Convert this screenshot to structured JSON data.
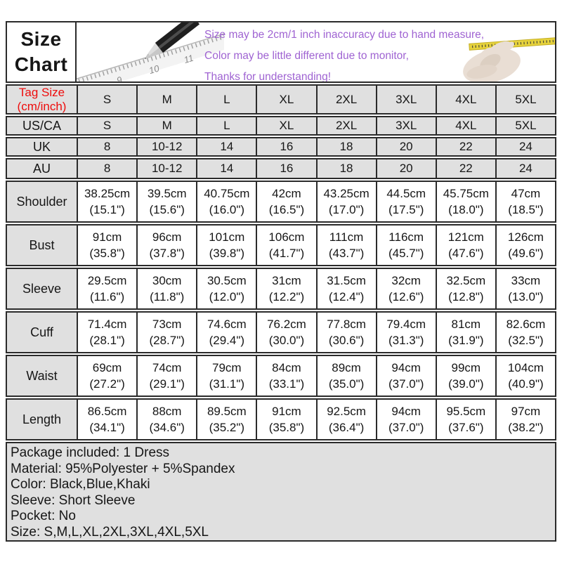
{
  "title": {
    "line1": "Size",
    "line2": "Chart"
  },
  "header_note": {
    "lines": [
      "Size may be 2cm/1 inch inaccuracy due to hand measure,",
      "Color may be little different due to monitor,",
      "Thanks for understanding!"
    ]
  },
  "icons": {
    "pencil_ruler": "pencil-and-ruler-illustration",
    "hand_tape": "hand-holding-measuring-tape-illustration",
    "ruler_numbers": [
      "9",
      "10",
      "11"
    ]
  },
  "colors": {
    "cell_gray": "#e0e0e0",
    "border": "#2b2b2b",
    "tag_size_red": "#ee0c0c",
    "note_purple": "#9f63d2",
    "tape_yellow": "#e6d23c",
    "hand_skin": "#e9ded4"
  },
  "table": {
    "columns": [
      "S",
      "M",
      "L",
      "XL",
      "2XL",
      "3XL",
      "4XL",
      "5XL"
    ],
    "rows": [
      {
        "name": "tag-size",
        "type": "size",
        "variant": "tag",
        "label": [
          "Tag Size",
          "(cm/inch)"
        ],
        "cells": [
          [
            "S"
          ],
          [
            "M"
          ],
          [
            "L"
          ],
          [
            "XL"
          ],
          [
            "2XL"
          ],
          [
            "3XL"
          ],
          [
            "4XL"
          ],
          [
            "5XL"
          ]
        ]
      },
      {
        "name": "us-ca",
        "type": "size",
        "label": [
          "US/CA"
        ],
        "cells": [
          [
            "S"
          ],
          [
            "M"
          ],
          [
            "L"
          ],
          [
            "XL"
          ],
          [
            "2XL"
          ],
          [
            "3XL"
          ],
          [
            "4XL"
          ],
          [
            "5XL"
          ]
        ]
      },
      {
        "name": "uk",
        "type": "size",
        "label": [
          "UK"
        ],
        "cells": [
          [
            "8"
          ],
          [
            "10-12"
          ],
          [
            "14"
          ],
          [
            "16"
          ],
          [
            "18"
          ],
          [
            "20"
          ],
          [
            "22"
          ],
          [
            "24"
          ]
        ]
      },
      {
        "name": "au",
        "type": "size",
        "variant": "au",
        "label": [
          "AU"
        ],
        "cells": [
          [
            "8"
          ],
          [
            "10-12"
          ],
          [
            "14"
          ],
          [
            "16"
          ],
          [
            "18"
          ],
          [
            "20"
          ],
          [
            "22"
          ],
          [
            "24"
          ]
        ]
      },
      {
        "name": "shoulder",
        "type": "measure",
        "label": [
          "Shoulder"
        ],
        "cells": [
          [
            "38.25cm",
            "(15.1\")"
          ],
          [
            "39.5cm",
            "(15.6\")"
          ],
          [
            "40.75cm",
            "(16.0\")"
          ],
          [
            "42cm",
            "(16.5\")"
          ],
          [
            "43.25cm",
            "(17.0\")"
          ],
          [
            "44.5cm",
            "(17.5\")"
          ],
          [
            "45.75cm",
            "(18.0\")"
          ],
          [
            "47cm",
            "(18.5\")"
          ]
        ]
      },
      {
        "name": "bust",
        "type": "measure",
        "label": [
          "Bust"
        ],
        "cells": [
          [
            "91cm",
            "(35.8\")"
          ],
          [
            "96cm",
            "(37.8\")"
          ],
          [
            "101cm",
            "(39.8\")"
          ],
          [
            "106cm",
            "(41.7\")"
          ],
          [
            "111cm",
            "(43.7\")"
          ],
          [
            "116cm",
            "(45.7\")"
          ],
          [
            "121cm",
            "(47.6\")"
          ],
          [
            "126cm",
            "(49.6\")"
          ]
        ]
      },
      {
        "name": "sleeve",
        "type": "measure",
        "label": [
          "Sleeve"
        ],
        "cells": [
          [
            "29.5cm",
            "(11.6\")"
          ],
          [
            "30cm",
            "(11.8\")"
          ],
          [
            "30.5cm",
            "(12.0\")"
          ],
          [
            "31cm",
            "(12.2\")"
          ],
          [
            "31.5cm",
            "(12.4\")"
          ],
          [
            "32cm",
            "(12.6\")"
          ],
          [
            "32.5cm",
            "(12.8\")"
          ],
          [
            "33cm",
            "(13.0\")"
          ]
        ]
      },
      {
        "name": "cuff",
        "type": "measure",
        "label": [
          "Cuff"
        ],
        "cells": [
          [
            "71.4cm",
            "(28.1\")"
          ],
          [
            "73cm",
            "(28.7\")"
          ],
          [
            "74.6cm",
            "(29.4\")"
          ],
          [
            "76.2cm",
            "(30.0\")"
          ],
          [
            "77.8cm",
            "(30.6\")"
          ],
          [
            "79.4cm",
            "(31.3\")"
          ],
          [
            "81cm",
            "(31.9\")"
          ],
          [
            "82.6cm",
            "(32.5\")"
          ]
        ]
      },
      {
        "name": "waist",
        "type": "measure",
        "label": [
          "Waist"
        ],
        "cells": [
          [
            "69cm",
            "(27.2\")"
          ],
          [
            "74cm",
            "(29.1\")"
          ],
          [
            "79cm",
            "(31.1\")"
          ],
          [
            "84cm",
            "(33.1\")"
          ],
          [
            "89cm",
            "(35.0\")"
          ],
          [
            "94cm",
            "(37.0\")"
          ],
          [
            "99cm",
            "(39.0\")"
          ],
          [
            "104cm",
            "(40.9\")"
          ]
        ]
      },
      {
        "name": "length",
        "type": "measure",
        "label": [
          "Length"
        ],
        "cells": [
          [
            "86.5cm",
            "(34.1\")"
          ],
          [
            "88cm",
            "(34.6\")"
          ],
          [
            "89.5cm",
            "(35.2\")"
          ],
          [
            "91cm",
            "(35.8\")"
          ],
          [
            "92.5cm",
            "(36.4\")"
          ],
          [
            "94cm",
            "(37.0\")"
          ],
          [
            "95.5cm",
            "(37.6\")"
          ],
          [
            "97cm",
            "(38.2\")"
          ]
        ]
      }
    ]
  },
  "footer": {
    "lines": [
      "Package included: 1 Dress",
      "Material: 95%Polyester + 5%Spandex",
      "Color: Black,Blue,Khaki",
      "Sleeve: Short Sleeve",
      "Pocket: No",
      "Size: S,M,L,XL,2XL,3XL,4XL,5XL"
    ]
  }
}
